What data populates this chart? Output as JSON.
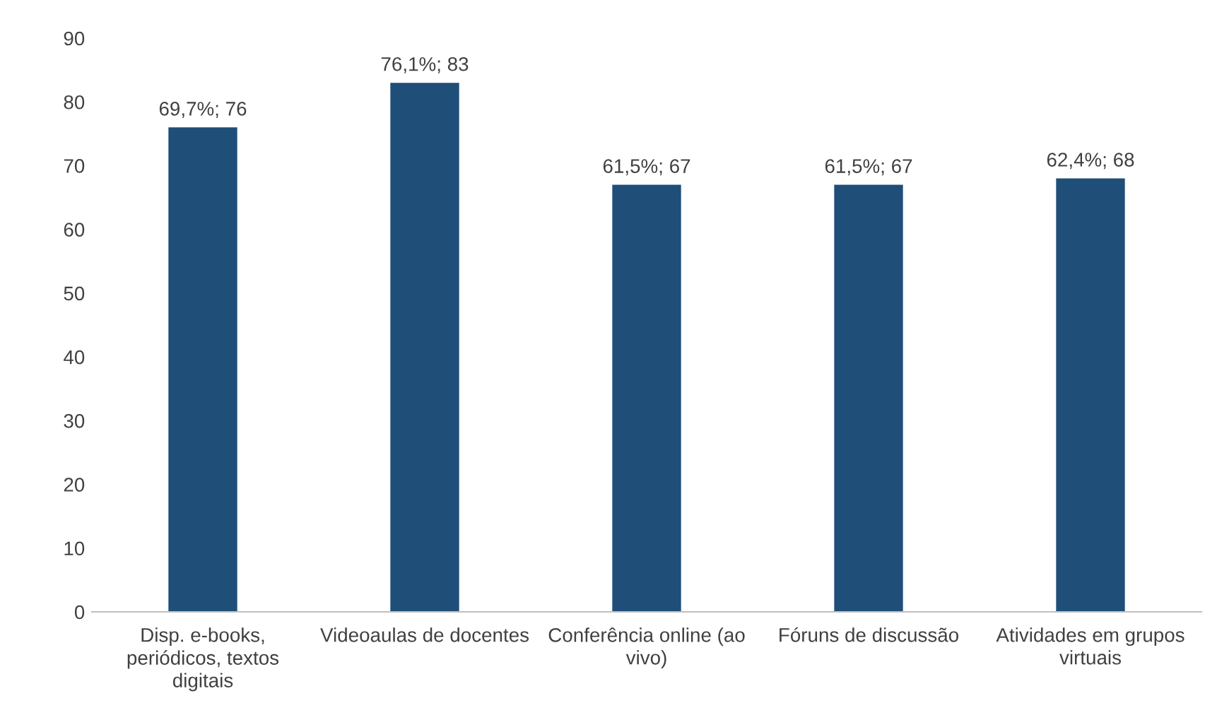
{
  "chart_data": {
    "type": "bar",
    "categories": [
      "Disp. e-books, periódicos, textos digitais",
      "Videoaulas de docentes",
      "Conferência online (ao vivo)",
      "Fóruns de discussão",
      "Atividades em grupos virtuais"
    ],
    "values": [
      76,
      83,
      67,
      67,
      68
    ],
    "value_labels": [
      "69,7%; 76",
      "76,1%; 83",
      "61,5%; 67",
      "61,5%; 67",
      "62,4%; 68"
    ],
    "color": "#1f4e79",
    "ylim": [
      0,
      90
    ],
    "yticks": [
      0,
      10,
      20,
      30,
      40,
      50,
      60,
      70,
      80,
      90
    ],
    "grid": false,
    "legend": false
  }
}
